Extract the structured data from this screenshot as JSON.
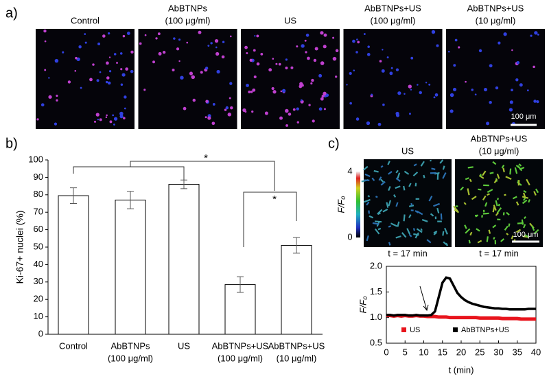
{
  "panel_labels": [
    "a)",
    "b)",
    "c)"
  ],
  "panel_a": {
    "image_titles": [
      [
        "Control"
      ],
      [
        "AbBTNPs",
        "(100 μg/ml)"
      ],
      [
        "US"
      ],
      [
        "AbBTNPs+US",
        "(100 μg/ml)"
      ],
      [
        "AbBTNPs+US",
        "(10 μg/ml)"
      ]
    ],
    "scale_bar": "100 μm"
  },
  "panel_c_images": {
    "image_titles": [
      [
        "US"
      ],
      [
        "AbBTNPs+US",
        "(10 μg/ml)"
      ]
    ],
    "captions": [
      "t = 17 min",
      "t = 17 min"
    ],
    "scale_bar": "100 μm",
    "colorbar": {
      "label": "F/F₀",
      "lim": [
        0,
        4
      ],
      "ticks": [
        0,
        4
      ]
    }
  },
  "chart_data": [
    {
      "type": "bar",
      "y_label": "Ki-67+ nuclei (%)",
      "categories": [
        [
          "Control"
        ],
        [
          "AbBTNPs",
          "(100 μg/ml)"
        ],
        [
          "US"
        ],
        [
          "AbBTNPs+US",
          "(100 μg/ml)"
        ],
        [
          "AbBTNPs+US",
          "(10 μg/ml)"
        ]
      ],
      "values": [
        79.5,
        77,
        86,
        28.5,
        51
      ],
      "errors": [
        4.5,
        5,
        2.5,
        4.5,
        4.5
      ],
      "color": "#ffffff",
      "ylim": [
        0,
        100
      ],
      "yticks": [
        0,
        10,
        20,
        30,
        40,
        50,
        60,
        70,
        80,
        90,
        100
      ],
      "annotations": [
        "*",
        "*"
      ]
    },
    {
      "type": "line",
      "x_label": "t (min)",
      "y_label": "F/F₀",
      "x": [
        0,
        1,
        2,
        3,
        4,
        5,
        6,
        7,
        8,
        9,
        10,
        11,
        12,
        13,
        14,
        15,
        16,
        17,
        18,
        19,
        20,
        21,
        22,
        23,
        24,
        25,
        26,
        27,
        28,
        29,
        30,
        31,
        32,
        33,
        34,
        35,
        36,
        37,
        38,
        39,
        40
      ],
      "series": [
        {
          "name": "US",
          "color": "#e8141c",
          "values": [
            1.04,
            1.04,
            1.03,
            1.04,
            1.03,
            1.04,
            1.03,
            1.03,
            1.04,
            1.03,
            1.03,
            1.02,
            1.02,
            1.02,
            1.01,
            1.01,
            1.01,
            1.0,
            1.0,
            1.0,
            1.0,
            1.0,
            1.0,
            1.0,
            1.0,
            0.99,
            0.99,
            0.99,
            0.99,
            0.99,
            0.99,
            0.98,
            0.98,
            0.98,
            0.98,
            0.98,
            0.97,
            0.97,
            0.97,
            0.97,
            0.97
          ]
        },
        {
          "name": "AbBTNPs+US",
          "color": "#000000",
          "values": [
            1.05,
            1.05,
            1.04,
            1.05,
            1.05,
            1.05,
            1.04,
            1.04,
            1.05,
            1.04,
            1.04,
            1.04,
            1.05,
            1.12,
            1.4,
            1.68,
            1.78,
            1.76,
            1.62,
            1.48,
            1.4,
            1.34,
            1.3,
            1.27,
            1.25,
            1.23,
            1.21,
            1.2,
            1.19,
            1.18,
            1.18,
            1.17,
            1.17,
            1.16,
            1.16,
            1.16,
            1.16,
            1.16,
            1.17,
            1.17,
            1.17
          ]
        }
      ],
      "xlim": [
        0,
        40
      ],
      "xticks": [
        0,
        5,
        10,
        15,
        20,
        25,
        30,
        35,
        40
      ],
      "ylim": [
        0.5,
        2
      ],
      "yticks": [
        0.5,
        {
          "value": 1,
          "label": "1.0"
        },
        1.5,
        {
          "value": 2,
          "label": "2.0"
        }
      ]
    }
  ]
}
